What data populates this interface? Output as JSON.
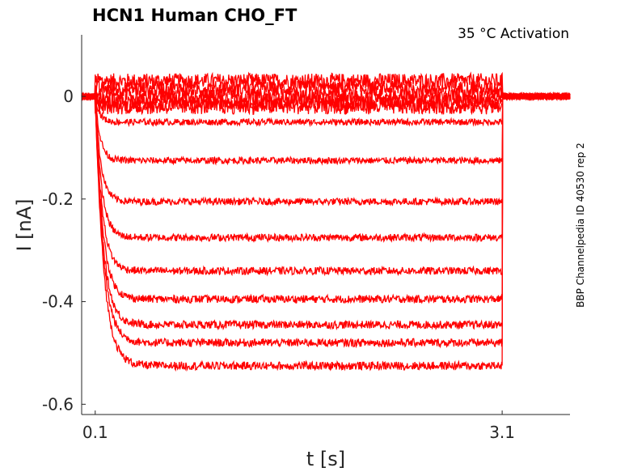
{
  "chart_data": {
    "type": "line",
    "title": "HCN1  Human  CHO_FT",
    "subtitle": "35 °C  Activation",
    "side_label": "BBP Channelpedia ID 40530 rep 2",
    "xlabel": "t [s]",
    "ylabel": "I [nA]",
    "xticks": [
      "0.1",
      "3.1"
    ],
    "yticks": [
      "0",
      "-0.2",
      "-0.4",
      "-0.6"
    ],
    "xlim": [
      0.0,
      3.6
    ],
    "ylim": [
      -0.62,
      0.12
    ],
    "pulse": {
      "start": 0.1,
      "end": 3.1
    },
    "trace_color": "#ff0000",
    "series_steady_state": [
      0.03,
      0.015,
      0.0,
      -0.01,
      -0.02,
      -0.05,
      -0.125,
      -0.205,
      -0.275,
      -0.34,
      -0.395,
      -0.445,
      -0.48,
      -0.525
    ]
  }
}
